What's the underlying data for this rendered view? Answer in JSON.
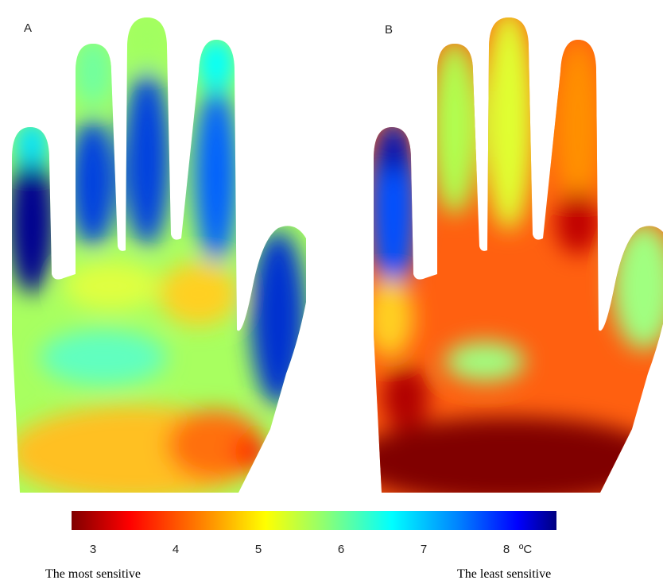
{
  "panels": [
    {
      "label": "A"
    },
    {
      "label": "B"
    }
  ],
  "colorbar": {
    "ticks": [
      3,
      4,
      5,
      6,
      7,
      8
    ],
    "unit": "ºC"
  },
  "captions": {
    "left": "The most sensitive",
    "right": "The least sensitive"
  }
}
